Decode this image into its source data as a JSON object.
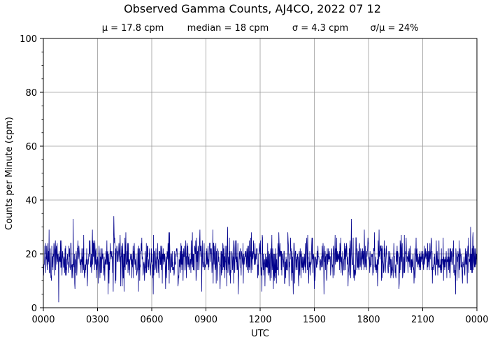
{
  "chart_data": {
    "type": "line",
    "title": "Observed Gamma Counts, AJ4CO, 2022 07 12",
    "subtitle_stats": [
      "μ = 17.8 cpm",
      "median = 18 cpm",
      "σ = 4.3 cpm",
      "σ/μ = 24%"
    ],
    "xlabel": "UTC",
    "ylabel": "Counts per Minute (cpm)",
    "x_tick_labels": [
      "0000",
      "0300",
      "0600",
      "0900",
      "1200",
      "1500",
      "1800",
      "2100",
      "0000"
    ],
    "x_range_hours": [
      0,
      24
    ],
    "ylim": [
      0,
      100
    ],
    "y_ticks": [
      0,
      20,
      40,
      60,
      80,
      100
    ],
    "grid": true,
    "series_color": "#00008b",
    "grid_color": "#9b9b9b",
    "sample_interval_minutes": 1,
    "stats": {
      "mean": 17.8,
      "median": 18,
      "std": 4.3
    },
    "notable_points": [
      {
        "x_hour": 0.85,
        "y": 2
      },
      {
        "x_hour": 3.9,
        "y": 34
      },
      {
        "x_hour": 1.65,
        "y": 33
      },
      {
        "x_hour": 17.05,
        "y": 33
      },
      {
        "x_hour": 23.65,
        "y": 30
      },
      {
        "x_hour": 10.2,
        "y": 30
      },
      {
        "x_hour": 12.1,
        "y": 6
      }
    ]
  }
}
